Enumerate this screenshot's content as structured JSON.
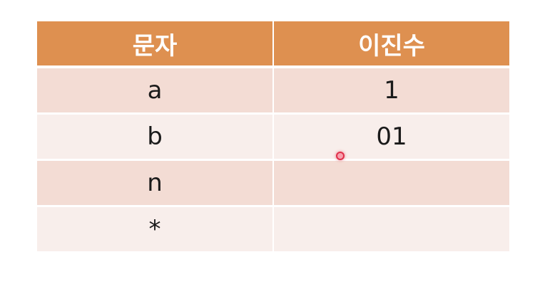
{
  "table": {
    "headers": [
      "문자",
      "이진수"
    ],
    "rows": [
      [
        "a",
        "1"
      ],
      [
        "b",
        "01"
      ],
      [
        "n",
        ""
      ],
      [
        "*",
        ""
      ]
    ]
  },
  "colors": {
    "header_bg": "#de9050",
    "row_odd_bg": "#f3dcd4",
    "row_even_bg": "#f8eeeb",
    "cursor": "#e0304a"
  },
  "icons": {
    "pointer": "laser-pointer-dot"
  }
}
